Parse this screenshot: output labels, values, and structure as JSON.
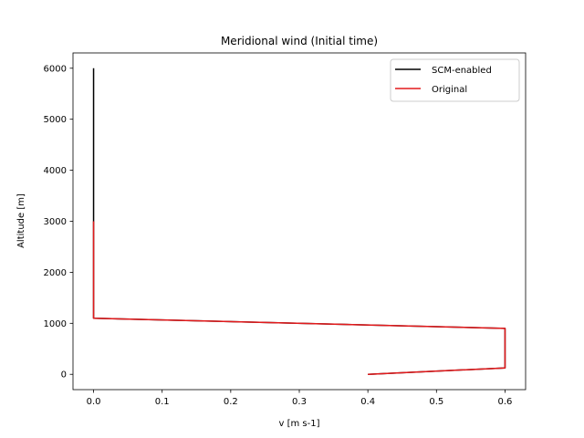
{
  "chart_data": {
    "type": "line",
    "title": "Meridional wind (Initial time)",
    "xlabel": "v [m s-1]",
    "ylabel": "Altitude [m]",
    "xlim": [
      -0.03,
      0.63
    ],
    "ylim": [
      -300,
      6300
    ],
    "xticks": [
      0.0,
      0.1,
      0.2,
      0.3,
      0.4,
      0.5,
      0.6
    ],
    "xtick_labels": [
      "0.0",
      "0.1",
      "0.2",
      "0.3",
      "0.4",
      "0.5",
      "0.6"
    ],
    "yticks": [
      0,
      1000,
      2000,
      3000,
      4000,
      5000,
      6000
    ],
    "ytick_labels": [
      "0",
      "1000",
      "2000",
      "3000",
      "4000",
      "5000",
      "6000"
    ],
    "legend_position": "top-right",
    "grid": false,
    "series": [
      {
        "name": "SCM-enabled",
        "color": "#000000",
        "x": [
          0.4,
          0.6,
          0.6,
          0.0,
          0.0
        ],
        "y": [
          0,
          125,
          900,
          1100,
          6000
        ]
      },
      {
        "name": "Original",
        "color": "#e31a1c",
        "x": [
          0.4,
          0.6,
          0.6,
          0.0,
          0.0
        ],
        "y": [
          0,
          125,
          900,
          1100,
          3000
        ]
      }
    ]
  }
}
